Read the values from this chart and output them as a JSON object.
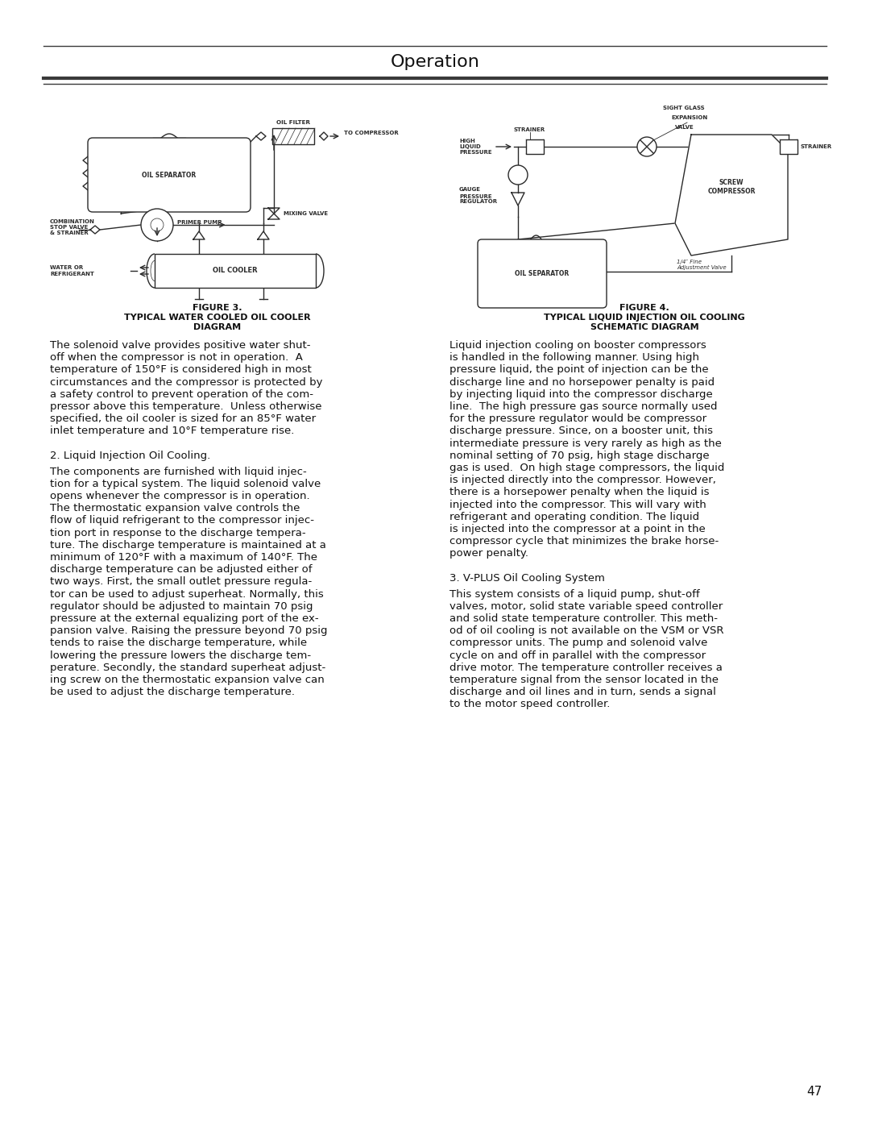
{
  "title": "Operation",
  "page_number": "47",
  "bg_color": "#ffffff",
  "text_color": "#1a1a1a",
  "figure3_title_line1": "FIGURE 3.",
  "figure3_title_line2": "TYPICAL WATER COOLED OIL COOLER",
  "figure3_title_line3": "DIAGRAM",
  "figure4_title_line1": "FIGURE 4.",
  "figure4_title_line2": "TYPICAL LIQUID INJECTION OIL COOLING",
  "figure4_title_line3": "SCHEMATIC DIAGRAM",
  "left_para1_lines": [
    "The solenoid valve provides positive water shut-",
    "off when the compressor is not in operation.  A",
    "temperature of 150°F is considered high in most",
    "circumstances and the compressor is protected by",
    "a safety control to prevent operation of the com-",
    "pressor above this temperature.  Unless otherwise",
    "specified, the oil cooler is sized for an 85°F water",
    "inlet temperature and 10°F temperature rise."
  ],
  "left_heading2": "2. Liquid Injection Oil Cooling.",
  "left_para2_lines": [
    "The components are furnished with liquid injec-",
    "tion for a typical system. The liquid solenoid valve",
    "opens whenever the compressor is in operation.",
    "The thermostatic expansion valve controls the",
    "flow of liquid refrigerant to the compressor injec-",
    "tion port in response to the discharge tempera-",
    "ture. The discharge temperature is maintained at a",
    "minimum of 120°F with a maximum of 140°F. The",
    "discharge temperature can be adjusted either of",
    "two ways. First, the small outlet pressure regula-",
    "tor can be used to adjust superheat. Normally, this",
    "regulator should be adjusted to maintain 70 psig",
    "pressure at the external equalizing port of the ex-",
    "pansion valve. Raising the pressure beyond 70 psig",
    "tends to raise the discharge temperature, while",
    "lowering the pressure lowers the discharge tem-",
    "perature. Secondly, the standard superheat adjust-",
    "ing screw on the thermostatic expansion valve can",
    "be used to adjust the discharge temperature."
  ],
  "right_para1_lines": [
    "Liquid injection cooling on booster compressors",
    "is handled in the following manner. Using high",
    "pressure liquid, the point of injection can be the",
    "discharge line and no horsepower penalty is paid",
    "by injecting liquid into the compressor discharge",
    "line.  The high pressure gas source normally used",
    "for the pressure regulator would be compressor",
    "discharge pressure. Since, on a booster unit, this",
    "intermediate pressure is very rarely as high as the",
    "nominal setting of 70 psig, high stage discharge",
    "gas is used.  On high stage compressors, the liquid",
    "is injected directly into the compressor. However,",
    "there is a horsepower penalty when the liquid is",
    "injected into the compressor. This will vary with",
    "refrigerant and operating condition. The liquid",
    "is injected into the compressor at a point in the",
    "compressor cycle that minimizes the brake horse-",
    "power penalty."
  ],
  "right_heading2": "3. V-PLUS Oil Cooling System",
  "right_para2_lines": [
    "This system consists of a liquid pump, shut-off",
    "valves, motor, solid state variable speed controller",
    "and solid state temperature controller. This meth-",
    "od of oil cooling is not available on the VSM or VSR",
    "compressor units. The pump and solenoid valve",
    "cycle on and off in parallel with the compressor",
    "drive motor. The temperature controller receives a",
    "temperature signal from the sensor located in the",
    "discharge and oil lines and in turn, sends a signal",
    "to the motor speed controller."
  ]
}
